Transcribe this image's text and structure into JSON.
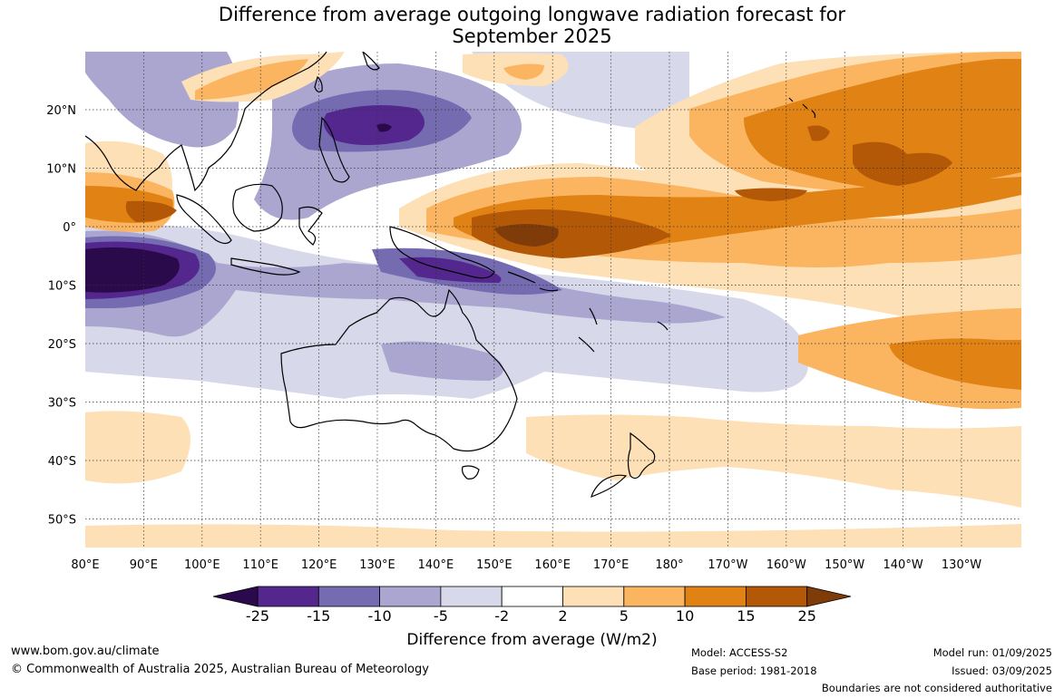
{
  "title": {
    "line1": "Difference from average outgoing longwave radiation forecast for",
    "line2": "September 2025"
  },
  "lat_labels": [
    "20°N",
    "10°N",
    "0°",
    "10°S",
    "20°S",
    "30°S",
    "40°S",
    "50°S"
  ],
  "lon_labels": [
    "80°E",
    "90°E",
    "100°E",
    "110°E",
    "120°E",
    "130°E",
    "140°E",
    "150°E",
    "160°E",
    "170°E",
    "180°",
    "170°W",
    "160°W",
    "150°W",
    "140°W",
    "130°W"
  ],
  "colorbar": {
    "ticks": [
      "-25",
      "-15",
      "-10",
      "-5",
      "-2",
      "2",
      "5",
      "10",
      "15",
      "25"
    ],
    "colors": {
      "lt_minus25": "#2a0a4a",
      "m25_m15": "#54278f",
      "m15_m10": "#756bb1",
      "m10_m5": "#aaa6d0",
      "m5_m2": "#d8d8eb",
      "m2_p2": "#ffffff",
      "p2_p5": "#fde0b6",
      "p5_p10": "#fbb561",
      "p10_p15": "#e08214",
      "p15_p25": "#b35806",
      "gt_p25": "#7f3b08"
    },
    "label": "Difference from average (W/m2)"
  },
  "footer": {
    "website": "www.bom.gov.au/climate",
    "copyright": "© Commonwealth of Australia 2025, Australian Bureau of Meteorology",
    "model": "Model: ACCESS-S2",
    "base_period": "Base period: 1981-2018",
    "model_run": "Model run: 01/09/2025",
    "issued": "Issued: 03/09/2025",
    "disclaimer": "Boundaries are not considered authoritative"
  }
}
